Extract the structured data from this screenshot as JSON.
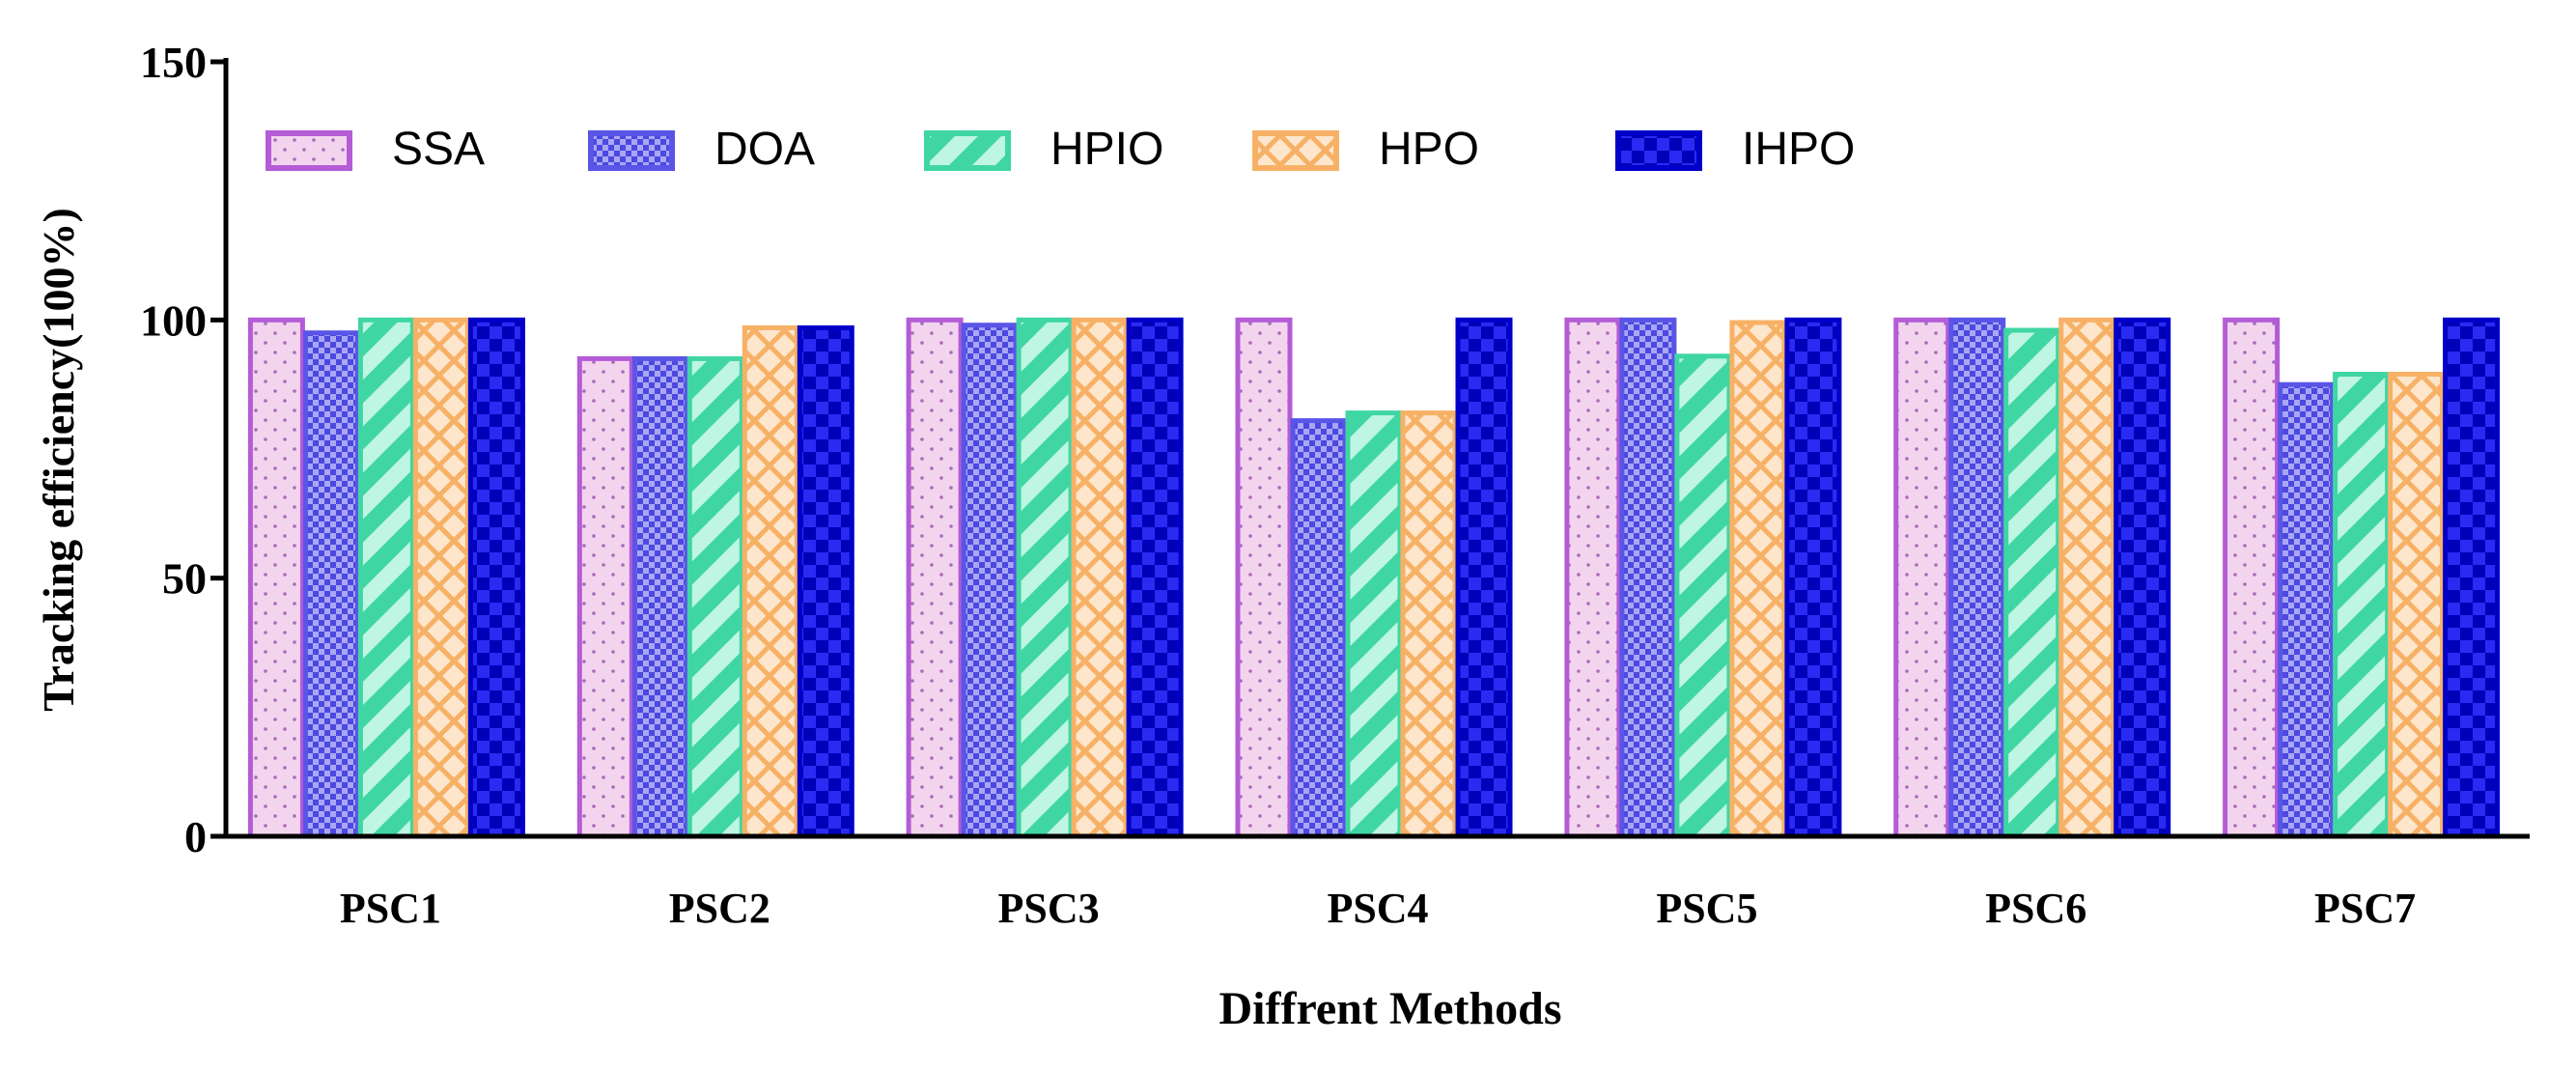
{
  "chart_data": {
    "type": "bar",
    "xlabel": "Diffrent Methods",
    "ylabel": "Tracking efficiency(100%)",
    "ylim": [
      0,
      150
    ],
    "yticks": [
      "0",
      "50",
      "100",
      "150"
    ],
    "categories": [
      "PSC1",
      "PSC2",
      "PSC3",
      "PSC4",
      "PSC5",
      "PSC6",
      "PSC7"
    ],
    "legend_position": "top-left, inside plot",
    "grid": false,
    "series": [
      {
        "name": "SSA",
        "values": [
          100,
          92.5,
          100,
          100,
          100,
          100,
          100
        ],
        "fill": "#f3d4ef",
        "stroke": "#b45bd6",
        "pattern": "dots"
      },
      {
        "name": "DOA",
        "values": [
          97.5,
          92.5,
          99,
          80.5,
          100,
          100,
          87.5
        ],
        "fill": "#8e8cf2",
        "stroke": "#5a55e6",
        "pattern": "checker-small"
      },
      {
        "name": "HPIO",
        "values": [
          100,
          92.5,
          100,
          82,
          93,
          98,
          89.5
        ],
        "fill": "#7de6c6",
        "stroke": "#3fd6a3",
        "pattern": "diagonal-stripes"
      },
      {
        "name": "HPO",
        "values": [
          100,
          98.5,
          100,
          82,
          99.5,
          100,
          89.5
        ],
        "fill": "#fcd7ad",
        "stroke": "#f7b166",
        "pattern": "diagonal-hatch"
      },
      {
        "name": "IHPO",
        "values": [
          100,
          98.5,
          100,
          100,
          100,
          100,
          100
        ],
        "fill": "#1010dd",
        "stroke": "#0000c8",
        "pattern": "checker-large"
      }
    ]
  }
}
